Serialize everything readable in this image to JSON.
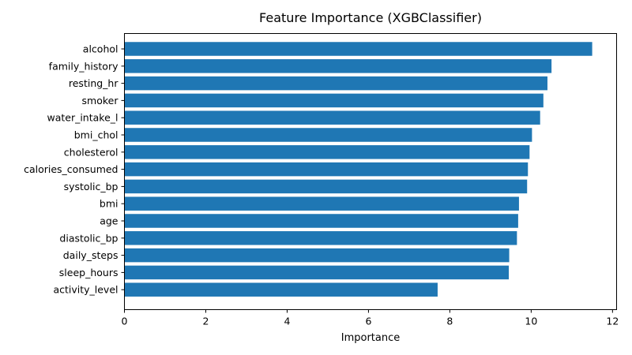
{
  "chart_data": {
    "type": "bar",
    "orientation": "horizontal",
    "title": "Feature Importance (XGBClassifier)",
    "xlabel": "Importance",
    "ylabel": "",
    "xlim": [
      0,
      12.1
    ],
    "xticks": [
      0,
      2,
      4,
      6,
      8,
      10,
      12
    ],
    "grid": false,
    "bar_color": "#1f77b4",
    "categories": [
      "alcohol",
      "family_history",
      "resting_hr",
      "smoker",
      "water_intake_l",
      "bmi_chol",
      "cholesterol",
      "calories_consumed",
      "systolic_bp",
      "bmi",
      "age",
      "diastolic_bp",
      "daily_steps",
      "sleep_hours",
      "activity_level"
    ],
    "values": [
      11.5,
      10.5,
      10.4,
      10.3,
      10.22,
      10.02,
      9.96,
      9.92,
      9.9,
      9.7,
      9.68,
      9.65,
      9.46,
      9.45,
      7.7
    ]
  }
}
